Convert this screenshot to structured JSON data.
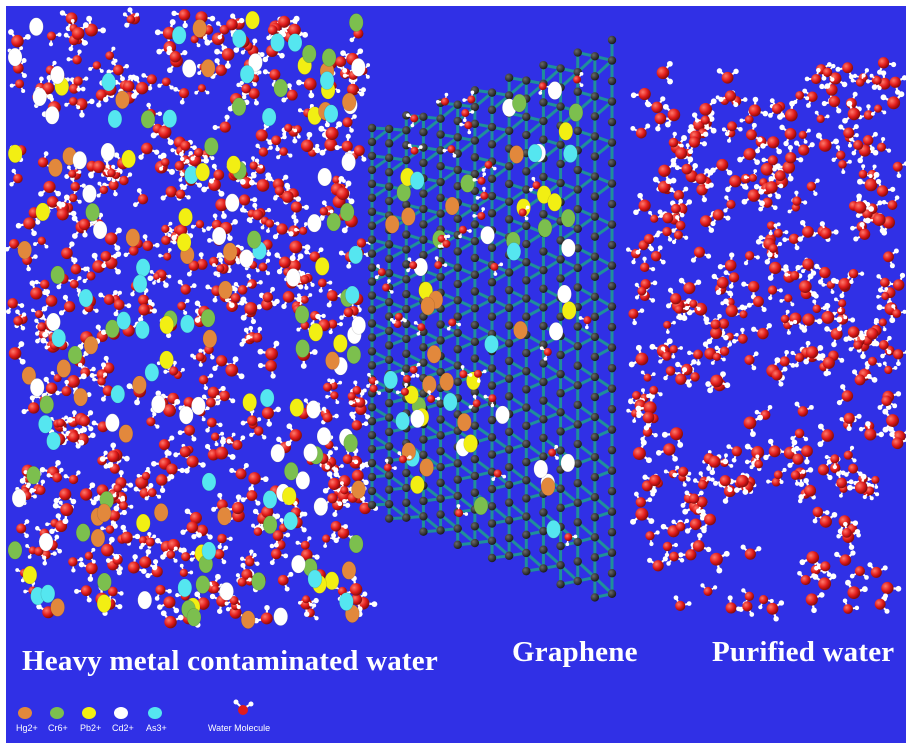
{
  "labels": {
    "contaminated": "Heavy metal contaminated water",
    "graphene": "Graphene",
    "purified": "Purified water"
  },
  "legend": [
    {
      "label": "Hg2+",
      "color": "#e2883c"
    },
    {
      "label": "Cr6+",
      "color": "#7cbf4e"
    },
    {
      "label": "Pb2+",
      "color": "#f2ef13"
    },
    {
      "label": "Cd2+",
      "color": "#ffffff"
    },
    {
      "label": "As3+",
      "color": "#55e6f0"
    },
    {
      "label": "Water Molecule",
      "color": "#e11b1b"
    }
  ],
  "colors": {
    "background": "#3030e6",
    "oxygen": "#e11b1b",
    "hydrogen": "#ffffff",
    "carbon": "#1c1c1c",
    "bond": "#1f8f9a"
  }
}
